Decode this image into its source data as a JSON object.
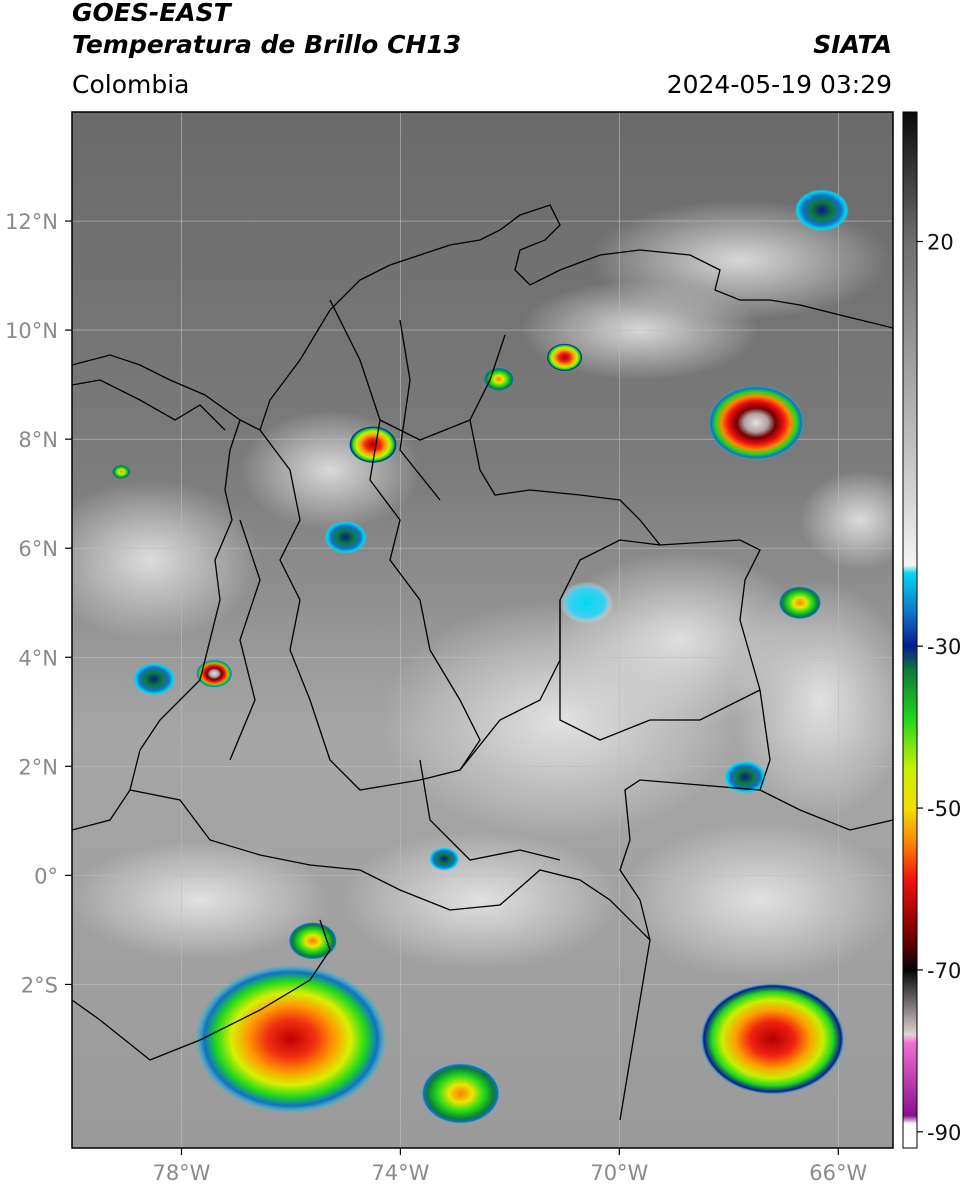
{
  "header": {
    "satellite": "GOES-EAST",
    "product": "Temperatura de Brillo CH13",
    "organization": "SIATA",
    "region": "Colombia",
    "timestamp": "2024-05-19 03:29"
  },
  "map": {
    "lon_range": [
      -80,
      -65
    ],
    "lat_range": [
      -5,
      14
    ],
    "gridlines": true,
    "lon_ticks": [
      {
        "value": -78,
        "label": "78°W"
      },
      {
        "value": -74,
        "label": "74°W"
      },
      {
        "value": -70,
        "label": "70°W"
      },
      {
        "value": -66,
        "label": "66°W"
      }
    ],
    "lat_ticks": [
      {
        "value": 12,
        "label": "12°N"
      },
      {
        "value": 10,
        "label": "10°N"
      },
      {
        "value": 8,
        "label": "8°N"
      },
      {
        "value": 6,
        "label": "6°N"
      },
      {
        "value": 4,
        "label": "4°N"
      },
      {
        "value": 2,
        "label": "2°N"
      },
      {
        "value": 0,
        "label": "0°"
      },
      {
        "value": -2,
        "label": "2°S"
      }
    ],
    "convective_cells": [
      {
        "lon": -76.0,
        "lat": -3.0,
        "size": 3.2,
        "intensity": "very-high"
      },
      {
        "lon": -67.5,
        "lat": 8.3,
        "size": 1.6,
        "intensity": "extreme"
      },
      {
        "lon": -67.2,
        "lat": -3.0,
        "size": 2.4,
        "intensity": "high"
      },
      {
        "lon": -72.9,
        "lat": -4.0,
        "size": 1.3,
        "intensity": "moderate"
      },
      {
        "lon": -74.5,
        "lat": 7.9,
        "size": 0.8,
        "intensity": "high"
      },
      {
        "lon": -71.0,
        "lat": 9.5,
        "size": 0.6,
        "intensity": "high"
      },
      {
        "lon": -72.2,
        "lat": 9.1,
        "size": 0.5,
        "intensity": "moderate"
      },
      {
        "lon": -77.4,
        "lat": 3.7,
        "size": 0.6,
        "intensity": "extreme"
      },
      {
        "lon": -66.7,
        "lat": 5.0,
        "size": 0.7,
        "intensity": "moderate"
      },
      {
        "lon": -67.7,
        "lat": 1.8,
        "size": 0.7,
        "intensity": "low"
      },
      {
        "lon": -78.5,
        "lat": 3.6,
        "size": 0.7,
        "intensity": "low"
      },
      {
        "lon": -73.2,
        "lat": 0.3,
        "size": 0.5,
        "intensity": "low"
      },
      {
        "lon": -75.6,
        "lat": -1.2,
        "size": 0.8,
        "intensity": "moderate"
      },
      {
        "lon": -66.3,
        "lat": 12.2,
        "size": 0.9,
        "intensity": "low"
      },
      {
        "lon": -75.0,
        "lat": 6.2,
        "size": 0.7,
        "intensity": "low"
      },
      {
        "lon": -79.1,
        "lat": 7.4,
        "size": 0.3,
        "intensity": "moderate"
      },
      {
        "lon": -70.6,
        "lat": 5.0,
        "size": 0.9,
        "intensity": "cold-cloud"
      }
    ]
  },
  "colorbar": {
    "label_unit": "",
    "vmin": -92,
    "vmax": 36,
    "ticks": [
      {
        "value": 20,
        "label": "20"
      },
      {
        "value": -30,
        "label": "-30"
      },
      {
        "value": -50,
        "label": "-50"
      },
      {
        "value": -70,
        "label": "-70"
      },
      {
        "value": -90,
        "label": "-90"
      }
    ],
    "stops": [
      {
        "value": 36,
        "color": "#0a0a0a"
      },
      {
        "value": 20,
        "color": "#6e6e6e"
      },
      {
        "value": -10,
        "color": "#cfcfcf"
      },
      {
        "value": -20,
        "color": "#f4f4f4"
      },
      {
        "value": -21,
        "color": "#00d8f0"
      },
      {
        "value": -26,
        "color": "#1070c8"
      },
      {
        "value": -30,
        "color": "#0a1a90"
      },
      {
        "value": -33,
        "color": "#0e7a3a"
      },
      {
        "value": -39,
        "color": "#21d81c"
      },
      {
        "value": -45,
        "color": "#c8f000"
      },
      {
        "value": -50,
        "color": "#f0e000"
      },
      {
        "value": -54,
        "color": "#ff8a00"
      },
      {
        "value": -59,
        "color": "#f01010"
      },
      {
        "value": -66,
        "color": "#700000"
      },
      {
        "value": -70,
        "color": "#050505"
      },
      {
        "value": -78,
        "color": "#e0d4d4"
      },
      {
        "value": -79,
        "color": "#f070d0"
      },
      {
        "value": -88,
        "color": "#8a1090"
      },
      {
        "value": -89,
        "color": "#ffffff"
      }
    ]
  }
}
